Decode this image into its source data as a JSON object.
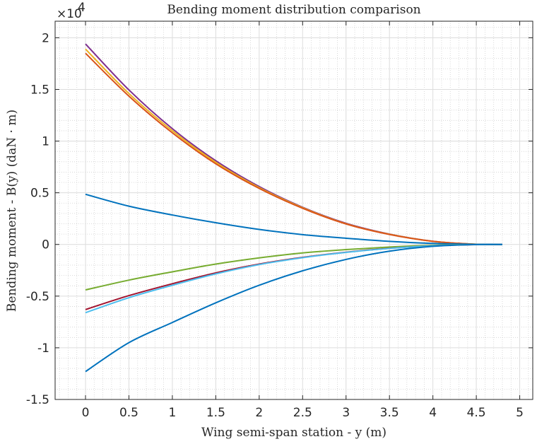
{
  "chart_data": {
    "type": "line",
    "title": "Bending moment distribution comparison",
    "xlabel": "Wing semi-span station - y (m)",
    "ylabel": "Bending moment - B(y) (daN · m)",
    "y_exponent_label": "×10",
    "y_exponent_power": "4",
    "xlim": [
      -0.35,
      5.15
    ],
    "ylim": [
      -15000,
      21600
    ],
    "x_ticks": [
      0,
      0.5,
      1,
      1.5,
      2,
      2.5,
      3,
      3.5,
      4,
      4.5,
      5
    ],
    "x_tick_labels": [
      "0",
      "0.5",
      "1",
      "1.5",
      "2",
      "2.5",
      "3",
      "3.5",
      "4",
      "4.5",
      "5"
    ],
    "y_ticks": [
      -15000,
      -10000,
      -5000,
      0,
      5000,
      10000,
      15000,
      20000
    ],
    "y_tick_labels": [
      "-1.5",
      "-1",
      "-0.5",
      "0",
      "0.5",
      "1",
      "1.5",
      "2"
    ],
    "grid": "on",
    "minor_grid": "on",
    "x": [
      0,
      0.5,
      1,
      1.5,
      2,
      2.5,
      3,
      3.5,
      4,
      4.5,
      4.8
    ],
    "series": [
      {
        "color": "#7E2F8E",
        "values": [
          19400,
          14950,
          11200,
          8100,
          5600,
          3600,
          2050,
          1000,
          310,
          15,
          0
        ]
      },
      {
        "color": "#EDB120",
        "values": [
          18900,
          14600,
          11000,
          7950,
          5500,
          3550,
          2000,
          980,
          300,
          15,
          0
        ]
      },
      {
        "color": "#D95319",
        "values": [
          18500,
          14350,
          10800,
          7800,
          5420,
          3500,
          1980,
          960,
          300,
          15,
          0
        ]
      },
      {
        "color": "#0072BD",
        "values": [
          4850,
          3700,
          2850,
          2100,
          1450,
          950,
          600,
          300,
          100,
          10,
          0
        ]
      },
      {
        "color": "#77AC30",
        "values": [
          -4400,
          -3450,
          -2650,
          -1900,
          -1300,
          -820,
          -500,
          -250,
          -80,
          -5,
          0
        ]
      },
      {
        "color": "#A2142F",
        "values": [
          -6300,
          -4950,
          -3800,
          -2750,
          -1900,
          -1250,
          -750,
          -380,
          -120,
          -10,
          0
        ]
      },
      {
        "color": "#4DBEEE",
        "values": [
          -6600,
          -5150,
          -3950,
          -2850,
          -1950,
          -1280,
          -770,
          -390,
          -125,
          -10,
          0
        ]
      },
      {
        "color": "#0072BD",
        "values": [
          -12300,
          -9500,
          -7550,
          -5650,
          -3950,
          -2550,
          -1450,
          -650,
          -180,
          -10,
          0
        ]
      }
    ]
  }
}
